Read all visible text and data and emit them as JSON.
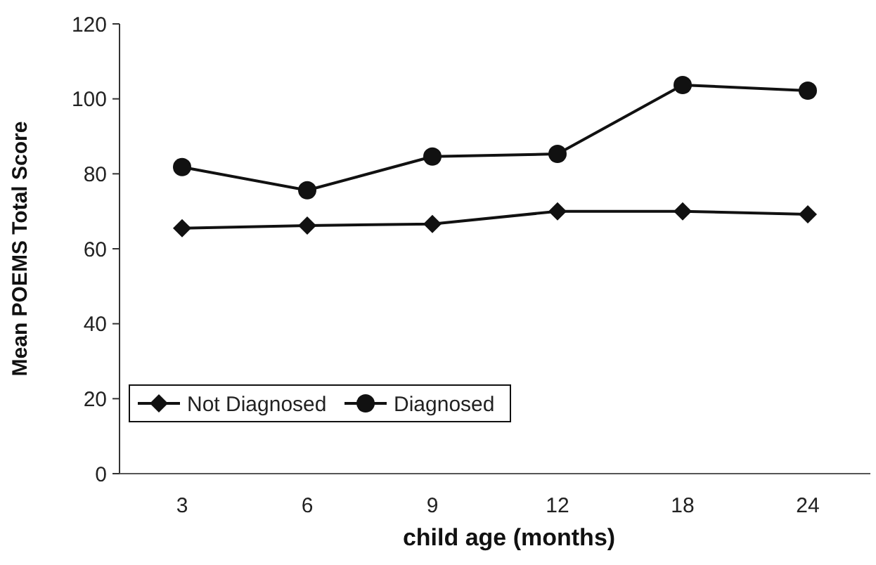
{
  "chart_data": {
    "type": "line",
    "xlabel": "child age (months)",
    "ylabel": "Mean POEMS Total Score",
    "categories": [
      "3",
      "6",
      "9",
      "12",
      "18",
      "24"
    ],
    "series": [
      {
        "name": "Not Diagnosed",
        "color": "#111111",
        "marker": "diamond",
        "values": [
          65.5,
          66.2,
          66.6,
          70.0,
          70.0,
          69.2
        ]
      },
      {
        "name": "Diagnosed",
        "color": "#111111",
        "marker": "circle",
        "values": [
          81.8,
          75.6,
          84.6,
          85.3,
          103.7,
          102.2
        ]
      }
    ],
    "ylim": [
      0,
      120
    ],
    "yticks": [
      0,
      20,
      40,
      60,
      80,
      100,
      120
    ],
    "grid": false,
    "legend": "bottom left",
    "line_style": "solid"
  }
}
